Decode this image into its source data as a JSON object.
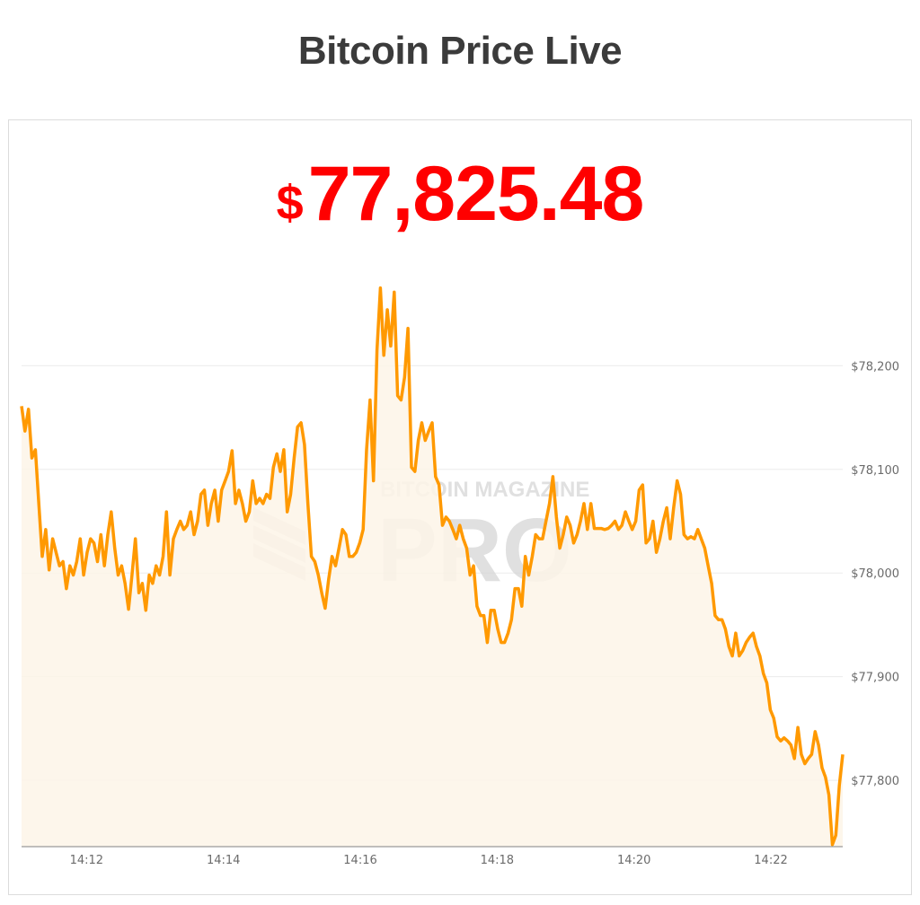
{
  "header": {
    "title": "Bitcoin Price Live"
  },
  "price": {
    "currency_symbol": "$",
    "value": "77,825.48",
    "color": "#ff0000"
  },
  "watermark": {
    "line1": "BITCOIN MAGAZINE",
    "line2": "PRO"
  },
  "chart_data": {
    "type": "area",
    "line_color": "#ff9900",
    "fill_color": "#fdf4e8",
    "grid": true,
    "y_axis_position": "right",
    "x_start": "14:11:03",
    "x_end": "14:23:03",
    "x_ticks": [
      "14:12",
      "14:14",
      "14:16",
      "14:18",
      "14:20",
      "14:22"
    ],
    "y_ticks": [
      77800,
      77900,
      78000,
      78100,
      78200
    ],
    "y_tick_labels": [
      "$77,800",
      "$77,900",
      "$78,000",
      "$78,100",
      "$78,200"
    ],
    "ylim": [
      77736,
      78293
    ],
    "series": [
      {
        "values": [
          78161,
          78137,
          78158,
          78111,
          78119,
          78067,
          78016,
          78042,
          78003,
          78033,
          78020,
          78007,
          78011,
          77985,
          78007,
          77998,
          78011,
          78033,
          77998,
          78020,
          78033,
          78029,
          78011,
          78037,
          78007,
          78037,
          78059,
          78024,
          77998,
          78007,
          77990,
          77965,
          77998,
          78033,
          77981,
          77990,
          77964,
          77998,
          77990,
          78007,
          77998,
          78016,
          78059,
          77998,
          78033,
          78042,
          78050,
          78042,
          78046,
          78059,
          78037,
          78050,
          78076,
          78080,
          78046,
          78067,
          78080,
          78050,
          78080,
          78089,
          78098,
          78118,
          78067,
          78080,
          78067,
          78050,
          78059,
          78089,
          78067,
          78072,
          78067,
          78076,
          78072,
          78102,
          78115,
          78098,
          78119,
          78059,
          78076,
          78111,
          78141,
          78145,
          78124,
          78067,
          78016,
          78011,
          77998,
          77981,
          77966,
          77994,
          78016,
          78007,
          78024,
          78042,
          78037,
          78016,
          78016,
          78020,
          78029,
          78042,
          78119,
          78167,
          78089,
          78215,
          78275,
          78210,
          78254,
          78219,
          78271,
          78171,
          78167,
          78189,
          78236,
          78102,
          78098,
          78128,
          78145,
          78128,
          78137,
          78145,
          78093,
          78085,
          78046,
          78054,
          78050,
          78042,
          78033,
          78046,
          78033,
          78024,
          77998,
          78007,
          77968,
          77959,
          77959,
          77933,
          77964,
          77964,
          77946,
          77933,
          77933,
          77942,
          77955,
          77985,
          77985,
          77968,
          78016,
          77998,
          78016,
          78037,
          78033,
          78033,
          78050,
          78067,
          78093,
          78054,
          78024,
          78037,
          78054,
          78046,
          78029,
          78037,
          78050,
          78067,
          78042,
          78067,
          78043,
          78043,
          78043,
          78042,
          78043,
          78046,
          78050,
          78042,
          78046,
          78059,
          78050,
          78042,
          78050,
          78080,
          78085,
          78029,
          78033,
          78050,
          78020,
          78033,
          78050,
          78063,
          78033,
          78063,
          78089,
          78076,
          78037,
          78033,
          78035,
          78033,
          78042,
          78033,
          78024,
          78007,
          77990,
          77959,
          77955,
          77955,
          77946,
          77929,
          77920,
          77942,
          77920,
          77925,
          77933,
          77938,
          77942,
          77929,
          77920,
          77903,
          77894,
          77868,
          77860,
          77842,
          77838,
          77841,
          77838,
          77834,
          77821,
          77851,
          77825,
          77816,
          77821,
          77825,
          77847,
          77834,
          77812,
          77803,
          77786,
          77738,
          77747,
          77795,
          77825
        ]
      }
    ]
  }
}
